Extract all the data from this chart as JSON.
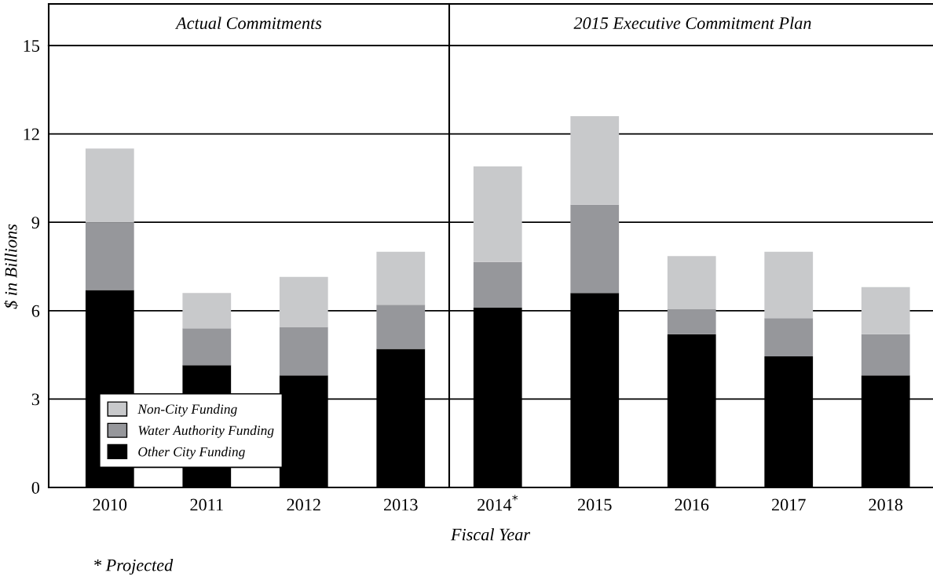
{
  "chart_data": [
    {
      "type": "bar",
      "stacked": true,
      "title": "Actual Commitments",
      "categories": [
        "2010",
        "2011",
        "2012",
        "2013"
      ],
      "series": [
        {
          "name": "Other City Funding",
          "color": "#000000",
          "values": [
            6.7,
            4.15,
            3.8,
            4.7
          ]
        },
        {
          "name": "Water Authority Funding",
          "color": "#96979b",
          "values": [
            2.3,
            1.25,
            1.65,
            1.5
          ]
        },
        {
          "name": "Non-City Funding",
          "color": "#c8c9cb",
          "values": [
            2.5,
            1.2,
            1.7,
            1.8
          ]
        }
      ],
      "ylim": [
        0,
        15
      ],
      "yticks": [
        0,
        3,
        6,
        9,
        12,
        15
      ],
      "grid": "y",
      "legend": "bottom left",
      "ylabel": "$ in Billions",
      "xlabel": "Fiscal Year"
    },
    {
      "type": "bar",
      "stacked": true,
      "title": "2015 Executive Commitment Plan",
      "categories": [
        "2014$^{*}$",
        "2015",
        "2016",
        "2017",
        "2018"
      ],
      "series": [
        {
          "color": "#000000",
          "values": [
            6.1,
            6.6,
            5.2,
            4.45,
            3.8
          ]
        },
        {
          "color": "#96979b",
          "values": [
            1.55,
            3.0,
            0.85,
            1.3,
            1.4
          ]
        },
        {
          "color": "#c8c9cb",
          "values": [
            3.25,
            3.0,
            1.8,
            2.25,
            1.6
          ]
        }
      ],
      "ylim": [
        0,
        15
      ],
      "yticks": [
        0,
        3,
        6,
        9,
        12,
        15
      ],
      "grid": "y",
      "tick_labels": "x",
      "annotations": [
        "* Projected"
      ]
    }
  ]
}
